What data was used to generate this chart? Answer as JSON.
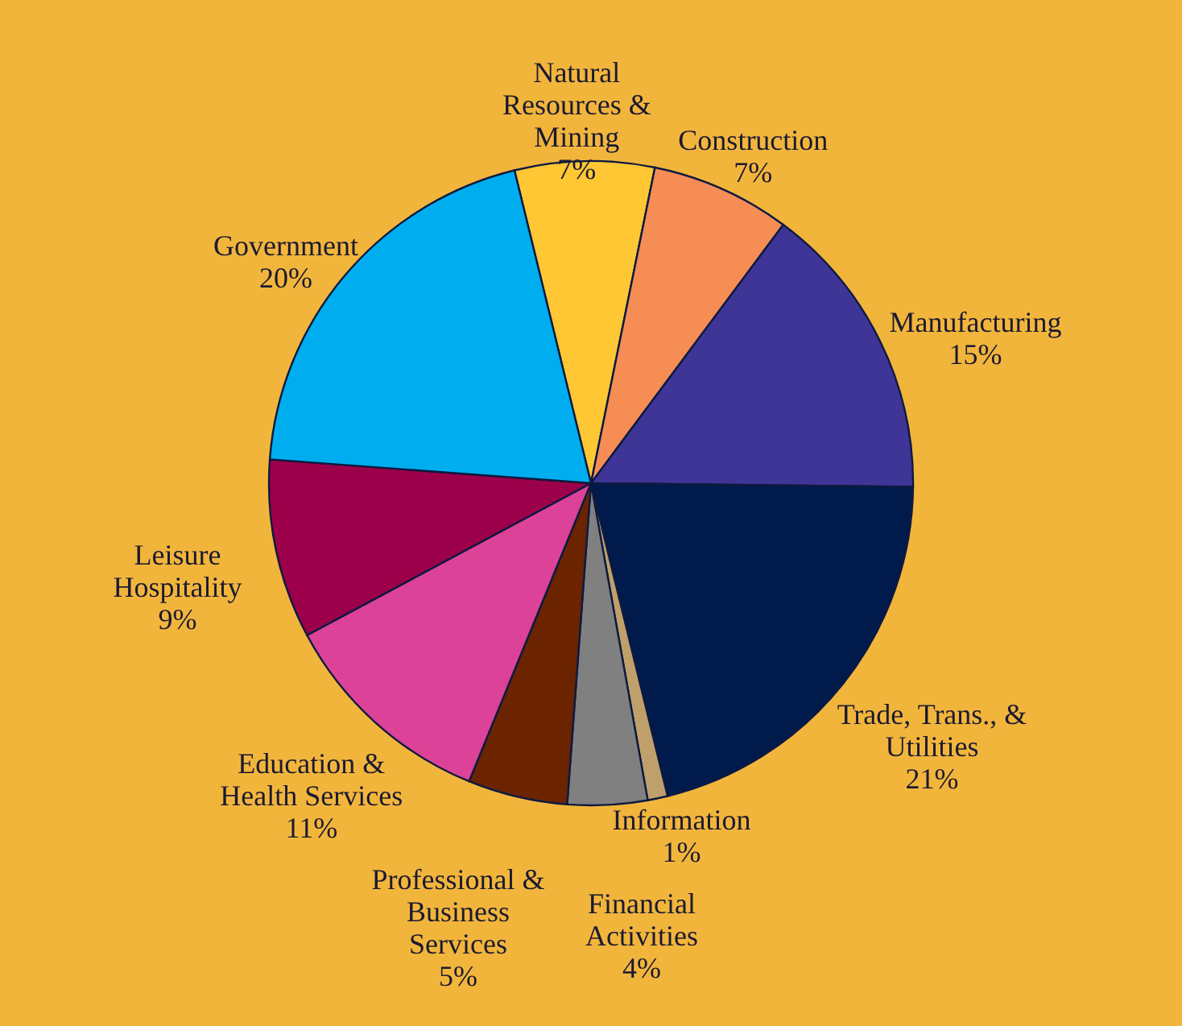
{
  "chart_data": {
    "type": "pie",
    "categories": [
      "Natural Resources & Mining",
      "Construction",
      "Manufacturing",
      "Trade, Trans., & Utilities",
      "Information",
      "Financial Activities",
      "Professional & Business Services",
      "Education & Health Services",
      "Leisure Hospitality",
      "Government"
    ],
    "values": [
      7,
      7,
      15,
      21,
      1,
      4,
      5,
      11,
      9,
      20
    ],
    "value_labels": [
      "7%",
      "7%",
      "15%",
      "21%",
      "1%",
      "4%",
      "5%",
      "11%",
      "9%",
      "20%"
    ],
    "colors": [
      "#ffc734",
      "#f58d55",
      "#3f3597",
      "#001a4c",
      "#bfa06a",
      "#808080",
      "#6b2300",
      "#dc4297",
      "#9c004a",
      "#00aeef"
    ]
  }
}
